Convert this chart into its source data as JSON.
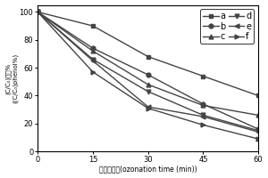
{
  "x": [
    0,
    15,
    30,
    45,
    60
  ],
  "series": {
    "a": [
      100,
      90,
      68,
      54,
      40
    ],
    "b": [
      100,
      74,
      55,
      34,
      16
    ],
    "c": [
      100,
      72,
      48,
      33,
      26
    ],
    "d": [
      100,
      66,
      43,
      26,
      15
    ],
    "e": [
      100,
      65,
      32,
      25,
      14
    ],
    "f": [
      100,
      57,
      31,
      19,
      9
    ]
  },
  "markers": {
    "a": "s",
    "b": "o",
    "c": "^",
    "d": "v",
    "e": "<",
    "f": ">"
  },
  "color": "#444444",
  "xlabel_cn": "自氧化时间",
  "xlabel_en": "(ozonation time (min))",
  "ylabel_line1": "(C/C₀)苯酟%",
  "ylabel_line2": "((C/C₀)phenol%)",
  "xlim": [
    0,
    60
  ],
  "ylim": [
    0,
    105
  ],
  "xticks": [
    0,
    15,
    30,
    45,
    60
  ],
  "yticks": [
    0,
    20,
    40,
    60,
    80,
    100
  ],
  "legend_order": [
    "a",
    "b",
    "c",
    "d",
    "e",
    "f"
  ],
  "background_color": "#ffffff"
}
